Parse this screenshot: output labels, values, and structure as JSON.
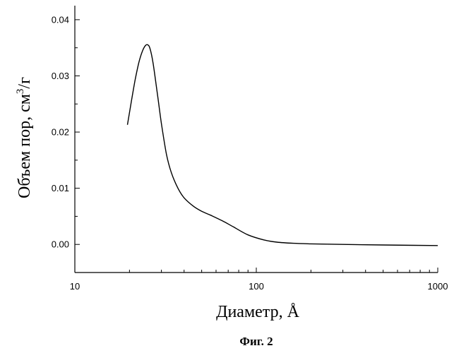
{
  "chart_data": {
    "type": "line",
    "xlabel": "Диаметр, Å",
    "ylabel_main": "Объем пор, см",
    "ylabel_sup": "3",
    "ylabel_tail": "/г",
    "x_scale": "log",
    "xlim": [
      10,
      1000
    ],
    "ylim": [
      -0.005,
      0.0425
    ],
    "x_ticks": [
      10,
      100,
      1000
    ],
    "x_tick_labels": [
      "10",
      "100",
      "1000"
    ],
    "y_ticks": [
      0.0,
      0.01,
      0.02,
      0.03,
      0.04
    ],
    "y_tick_labels": [
      "0.00",
      "0.01",
      "0.02",
      "0.03",
      "0.04"
    ],
    "grid": false,
    "series": [
      {
        "x": [
          19.5,
          20.5,
          21.5,
          22.5,
          23.5,
          24.5,
          25.3,
          26.0,
          27.0,
          28.5,
          30.0,
          32.0,
          34.0,
          37.0,
          40.0,
          45.0,
          50.0,
          56.0,
          65.0,
          75.0,
          90.0,
          110.0,
          130.0,
          160.0,
          200.0,
          300.0,
          500.0,
          1000.0
        ],
        "y": [
          0.0213,
          0.0255,
          0.0293,
          0.0323,
          0.0343,
          0.0354,
          0.0355,
          0.0348,
          0.0322,
          0.0268,
          0.0215,
          0.016,
          0.0128,
          0.01,
          0.0083,
          0.0068,
          0.0059,
          0.0052,
          0.0042,
          0.0031,
          0.0017,
          0.0008,
          0.0004,
          0.0002,
          0.0001,
          0.0,
          -0.0001,
          -0.0002
        ]
      }
    ]
  },
  "caption": "Фиг. 2"
}
